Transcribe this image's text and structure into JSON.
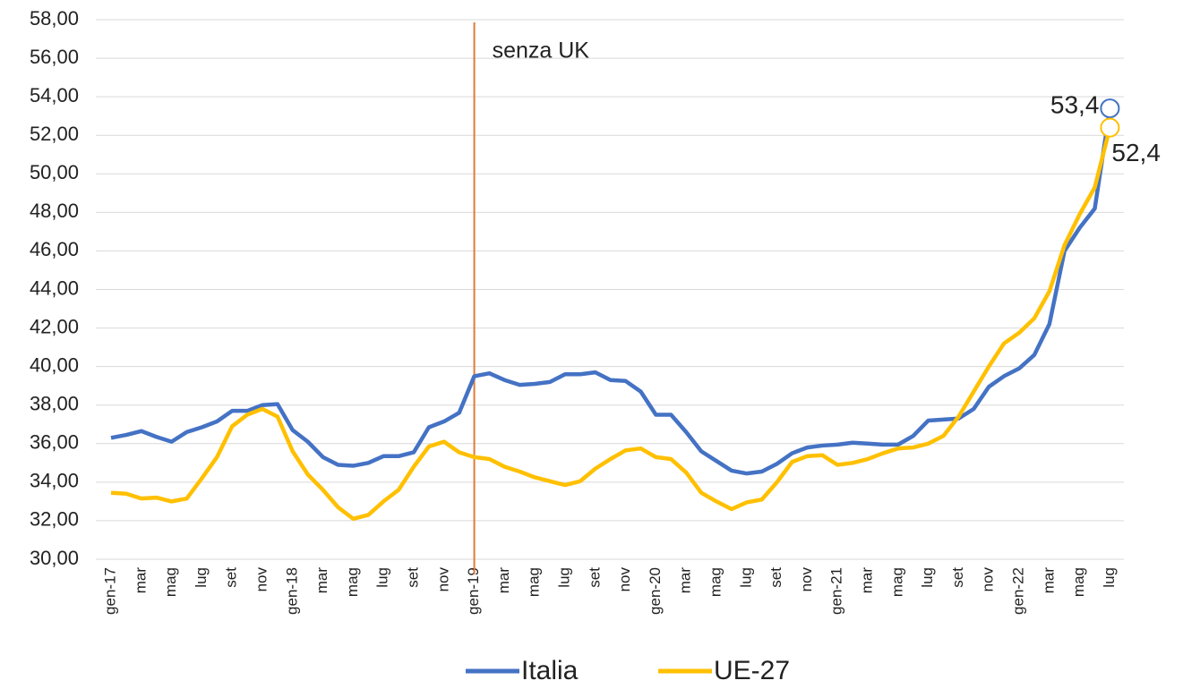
{
  "chart_data": {
    "type": "line",
    "categories": [
      "gen-17",
      null,
      "mar",
      null,
      "mag",
      null,
      "lug",
      null,
      "set",
      null,
      "nov",
      null,
      "gen-18",
      null,
      "mar",
      null,
      "mag",
      null,
      "lug",
      null,
      "set",
      null,
      "nov",
      null,
      "gen-19",
      null,
      "mar",
      null,
      "mag",
      null,
      "lug",
      null,
      "set",
      null,
      "nov",
      null,
      "gen-20",
      null,
      "mar",
      null,
      "mag",
      null,
      "lug",
      null,
      "set",
      null,
      "nov",
      null,
      "gen-21",
      null,
      "mar",
      null,
      "mag",
      null,
      "lug",
      null,
      "set",
      null,
      "nov",
      null,
      "gen-22",
      null,
      "mar",
      null,
      "mag",
      null,
      "lug"
    ],
    "series": [
      {
        "name": "Italia",
        "color": "#4472c4",
        "label_color": "#4472c4",
        "values": [
          36.3,
          36.45,
          36.65,
          36.35,
          36.1,
          36.6,
          36.85,
          37.15,
          37.7,
          37.7,
          38.0,
          38.05,
          36.7,
          36.1,
          35.3,
          34.9,
          34.85,
          35.0,
          35.35,
          35.35,
          35.55,
          36.85,
          37.15,
          37.6,
          39.5,
          39.65,
          39.3,
          39.05,
          39.1,
          39.2,
          39.6,
          39.6,
          39.7,
          39.3,
          39.25,
          38.7,
          37.5,
          37.5,
          36.6,
          35.6,
          35.1,
          34.6,
          34.45,
          34.55,
          34.95,
          35.5,
          35.8,
          35.9,
          35.95,
          36.05,
          36.0,
          35.95,
          35.95,
          36.4,
          37.2,
          37.25,
          37.3,
          37.8,
          38.95,
          39.5,
          39.9,
          40.6,
          42.2,
          46.0,
          47.2,
          48.2,
          53.4
        ],
        "value_labels": {
          "66": "53,4"
        }
      },
      {
        "name": "UE-27",
        "color": "#ffc000",
        "label_color": "#bf9000",
        "values": [
          33.45,
          33.4,
          33.15,
          33.2,
          33.0,
          33.15,
          34.2,
          35.3,
          36.9,
          37.5,
          37.8,
          37.4,
          35.6,
          34.4,
          33.6,
          32.7,
          32.1,
          32.3,
          33.0,
          33.6,
          34.8,
          35.85,
          36.1,
          35.55,
          35.3,
          35.2,
          34.8,
          34.55,
          34.25,
          34.05,
          33.85,
          34.05,
          34.7,
          35.2,
          35.65,
          35.75,
          35.3,
          35.2,
          34.5,
          33.45,
          33.0,
          32.6,
          32.95,
          33.1,
          34.0,
          35.05,
          35.35,
          35.4,
          34.9,
          35.0,
          35.2,
          35.5,
          35.75,
          35.8,
          36.0,
          36.4,
          37.4,
          38.7,
          40.0,
          41.2,
          41.75,
          42.5,
          43.9,
          46.3,
          47.9,
          49.3,
          52.4
        ],
        "value_labels": {
          "66": "52,4"
        }
      }
    ],
    "annotation": {
      "text": "senza UK",
      "index": 24,
      "color": "#e07b39"
    },
    "ylim": [
      30,
      58
    ],
    "yticks": [
      {
        "value": 30,
        "label": "30,00"
      },
      {
        "value": 32,
        "label": "32,00"
      },
      {
        "value": 34,
        "label": "34,00"
      },
      {
        "value": 36,
        "label": "36,00"
      },
      {
        "value": 38,
        "label": "38,00"
      },
      {
        "value": 40,
        "label": "40,00"
      },
      {
        "value": 42,
        "label": "42,00"
      },
      {
        "value": 44,
        "label": "44,00"
      },
      {
        "value": 46,
        "label": "46,00"
      },
      {
        "value": 48,
        "label": "48,00"
      },
      {
        "value": 50,
        "label": "50,00"
      },
      {
        "value": 52,
        "label": "52,00"
      },
      {
        "value": 54,
        "label": "54,00"
      },
      {
        "value": 56,
        "label": "56,00"
      },
      {
        "value": 58,
        "label": "58,00"
      }
    ],
    "grid": true,
    "legend": "bottom"
  }
}
